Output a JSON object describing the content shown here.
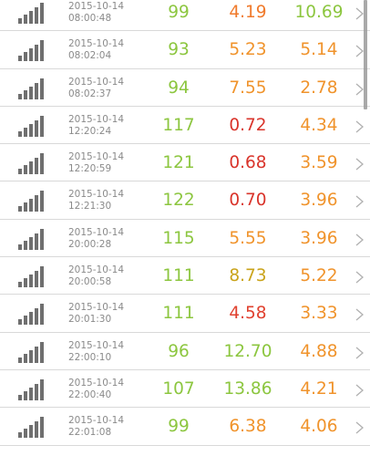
{
  "colors": {
    "green": "#8cc63f",
    "orange": "#f0932b",
    "red": "#e0402e",
    "gray_icon": "#6f6f6f",
    "date_text": "#8a8a8a",
    "divider": "#d9d9d9"
  },
  "icons": {
    "row_left": "signal-strength-icon",
    "row_right": "chevron-right-icon"
  },
  "rows": [
    {
      "date": "2015-10-14",
      "time": "08:00:48",
      "v1": "99",
      "v1_color": "#8cc63f",
      "v2": "4.19",
      "v2_color": "#f07a2b",
      "v3": "10.69",
      "v3_color": "#8cc63f"
    },
    {
      "date": "2015-10-14",
      "time": "08:02:04",
      "v1": "93",
      "v1_color": "#8cc63f",
      "v2": "5.23",
      "v2_color": "#f0932b",
      "v3": "5.14",
      "v3_color": "#f0932b"
    },
    {
      "date": "2015-10-14",
      "time": "08:02:37",
      "v1": "94",
      "v1_color": "#8cc63f",
      "v2": "7.55",
      "v2_color": "#f0932b",
      "v3": "2.78",
      "v3_color": "#f0932b"
    },
    {
      "date": "2015-10-14",
      "time": "12:20:24",
      "v1": "117",
      "v1_color": "#8cc63f",
      "v2": "0.72",
      "v2_color": "#d9342b",
      "v3": "4.34",
      "v3_color": "#f0932b"
    },
    {
      "date": "2015-10-14",
      "time": "12:20:59",
      "v1": "121",
      "v1_color": "#8cc63f",
      "v2": "0.68",
      "v2_color": "#d9342b",
      "v3": "3.59",
      "v3_color": "#f0932b"
    },
    {
      "date": "2015-10-14",
      "time": "12:21:30",
      "v1": "122",
      "v1_color": "#8cc63f",
      "v2": "0.70",
      "v2_color": "#d9342b",
      "v3": "3.96",
      "v3_color": "#f0932b"
    },
    {
      "date": "2015-10-14",
      "time": "20:00:28",
      "v1": "115",
      "v1_color": "#8cc63f",
      "v2": "5.55",
      "v2_color": "#f0932b",
      "v3": "3.96",
      "v3_color": "#f0932b"
    },
    {
      "date": "2015-10-14",
      "time": "20:00:58",
      "v1": "111",
      "v1_color": "#8cc63f",
      "v2": "8.73",
      "v2_color": "#c9a31a",
      "v3": "5.22",
      "v3_color": "#f0932b"
    },
    {
      "date": "2015-10-14",
      "time": "20:01:30",
      "v1": "111",
      "v1_color": "#8cc63f",
      "v2": "4.58",
      "v2_color": "#e0402e",
      "v3": "3.33",
      "v3_color": "#f0932b"
    },
    {
      "date": "2015-10-14",
      "time": "22:00:10",
      "v1": "96",
      "v1_color": "#8cc63f",
      "v2": "12.70",
      "v2_color": "#8cc63f",
      "v3": "4.88",
      "v3_color": "#f0932b"
    },
    {
      "date": "2015-10-14",
      "time": "22:00:40",
      "v1": "107",
      "v1_color": "#8cc63f",
      "v2": "13.86",
      "v2_color": "#8cc63f",
      "v3": "4.21",
      "v3_color": "#f0932b"
    },
    {
      "date": "2015-10-14",
      "time": "22:01:08",
      "v1": "99",
      "v1_color": "#8cc63f",
      "v2": "6.38",
      "v2_color": "#f0932b",
      "v3": "4.06",
      "v3_color": "#f0932b"
    }
  ]
}
